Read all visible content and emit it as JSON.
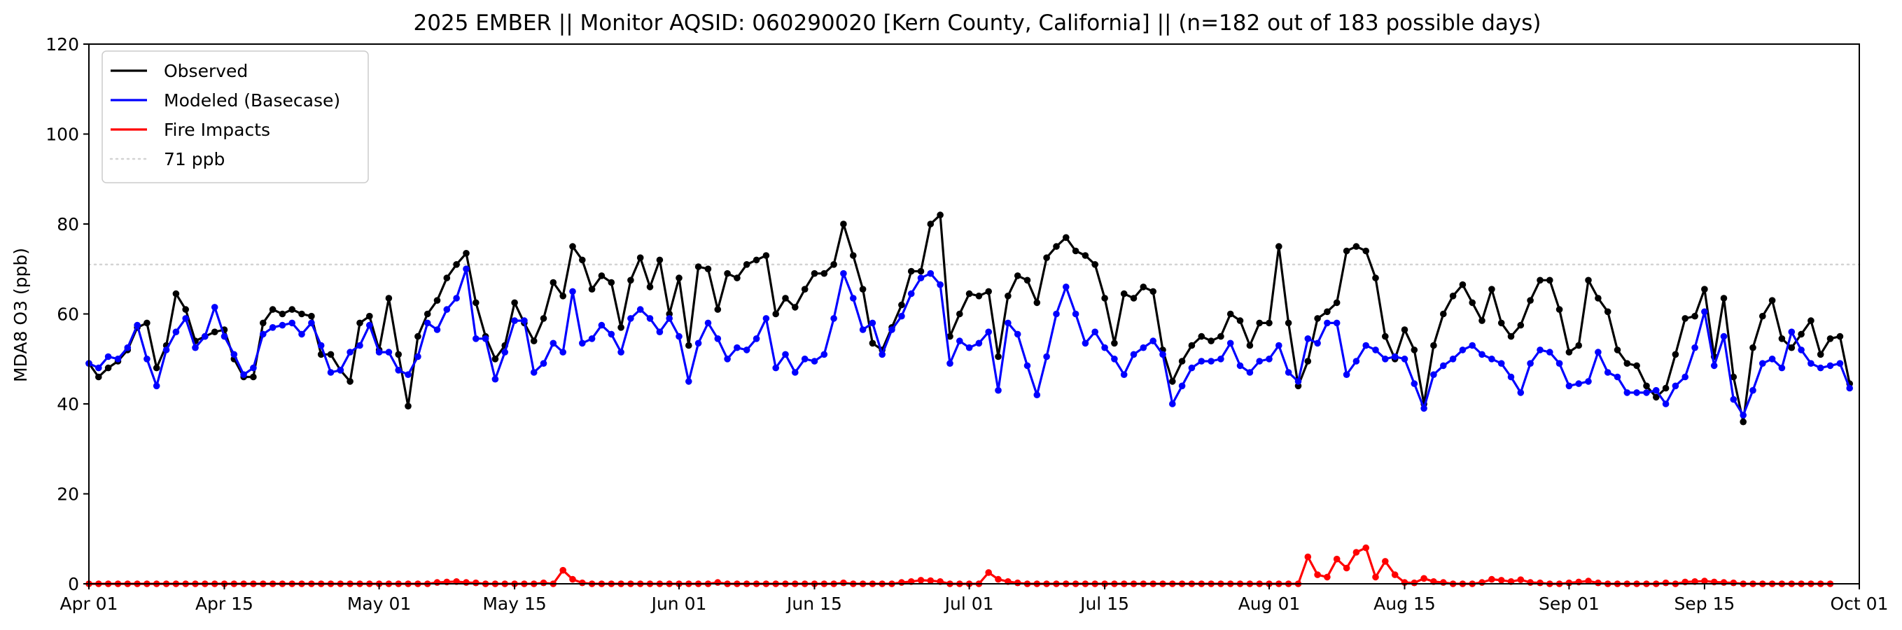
{
  "chart_data": {
    "type": "line",
    "title": "2025 EMBER || Monitor AQSID: 060290020 [Kern County, California] || (n=182 out of 183 possible days)",
    "xlabel": "",
    "ylabel": "MDA8 O3 (ppb)",
    "x_start": "2025-04-01",
    "x_end": "2025-10-01",
    "ylim": [
      0,
      120
    ],
    "yticks": [
      0,
      20,
      40,
      60,
      80,
      100,
      120
    ],
    "xticks": [
      {
        "date": "2025-04-01",
        "label": "Apr 01"
      },
      {
        "date": "2025-04-15",
        "label": "Apr 15"
      },
      {
        "date": "2025-05-01",
        "label": "May 01"
      },
      {
        "date": "2025-05-15",
        "label": "May 15"
      },
      {
        "date": "2025-06-01",
        "label": "Jun 01"
      },
      {
        "date": "2025-06-15",
        "label": "Jun 15"
      },
      {
        "date": "2025-07-01",
        "label": "Jul 01"
      },
      {
        "date": "2025-07-15",
        "label": "Jul 15"
      },
      {
        "date": "2025-08-01",
        "label": "Aug 01"
      },
      {
        "date": "2025-08-15",
        "label": "Aug 15"
      },
      {
        "date": "2025-09-01",
        "label": "Sep 01"
      },
      {
        "date": "2025-09-15",
        "label": "Sep 15"
      },
      {
        "date": "2025-10-01",
        "label": "Oct 01"
      }
    ],
    "legend_position": "top-left",
    "grid": false,
    "reference_line": {
      "name": "71 ppb",
      "y": 71,
      "color": "#d3d3d3",
      "style": "dotted"
    },
    "series": [
      {
        "name": "Observed",
        "color": "#000000",
        "values": [
          49,
          46,
          48,
          49.5,
          52,
          57,
          58,
          48,
          53,
          64.5,
          61,
          54,
          55,
          56,
          56.5,
          50,
          46,
          46,
          58,
          61,
          60,
          61,
          60,
          59.5,
          51,
          51,
          47.5,
          45,
          58,
          59.5,
          52,
          63.5,
          51,
          39.5,
          55,
          60,
          63,
          68,
          71,
          73.5,
          62.5,
          55,
          50,
          53,
          62.5,
          58,
          54,
          59,
          67,
          64,
          75,
          72,
          65.5,
          68.5,
          67,
          57,
          67.5,
          72.5,
          66,
          72,
          60,
          68,
          53,
          70.5,
          70,
          61,
          69,
          68,
          71,
          72,
          73,
          60,
          63.5,
          61.5,
          65.5,
          69,
          69,
          71,
          80,
          73,
          65.5,
          53.5,
          52,
          57,
          62,
          69.5,
          69.5,
          80,
          82,
          55,
          60,
          64.5,
          64,
          65,
          50.5,
          64,
          68.5,
          67.5,
          62.5,
          72.5,
          75,
          77,
          74,
          73,
          71,
          63.5,
          53.5,
          64.5,
          63.5,
          66,
          65,
          52,
          45,
          49.5,
          53,
          55,
          54,
          55,
          60,
          58.5,
          53,
          58,
          58,
          75,
          58,
          44,
          49.5,
          59,
          60.5,
          62.5,
          74,
          75,
          74,
          68,
          55,
          50,
          56.5,
          52,
          40,
          53,
          60,
          64,
          66.5,
          62.5,
          58.5,
          65.5,
          58,
          55,
          57.5,
          63,
          67.5,
          67.5,
          61,
          51.5,
          53,
          67.5,
          63.5,
          60.5,
          52,
          49,
          48.5,
          44,
          41.5,
          43.5,
          51,
          59,
          59.5,
          65.5,
          50.5,
          63.5,
          46,
          36,
          52.5,
          59.5,
          63,
          54.5,
          52.5,
          55.5,
          58.5,
          51,
          54.5,
          55,
          44.5
        ]
      },
      {
        "name": "Modeled (Basecase)",
        "color": "#0000ff",
        "values": [
          49,
          48,
          50.5,
          50,
          52.5,
          57.5,
          50,
          44,
          52,
          56,
          59,
          52.5,
          55,
          61.5,
          55,
          51,
          46.5,
          48,
          55.5,
          57,
          57.5,
          58,
          55.5,
          58,
          53,
          47,
          47.5,
          51.5,
          53,
          57.5,
          51.5,
          51.5,
          47.5,
          46.5,
          50.5,
          58,
          56.5,
          61,
          63.5,
          70,
          54.5,
          54.5,
          45.5,
          51.5,
          58.5,
          58.5,
          47,
          49,
          53.5,
          51.5,
          65,
          53.5,
          54.5,
          57.5,
          55.5,
          51.5,
          59,
          61,
          59,
          56,
          59,
          55,
          45,
          53.5,
          58,
          54.5,
          50,
          52.5,
          52,
          54.5,
          59,
          48,
          51,
          47,
          50,
          49.5,
          51,
          59,
          69,
          63.5,
          56.5,
          58,
          51,
          56.5,
          59.5,
          64.5,
          68,
          69,
          66.5,
          49,
          54,
          52.5,
          53.5,
          56,
          43,
          58,
          55.5,
          48.5,
          42,
          50.5,
          60,
          66,
          60,
          53.5,
          56,
          52.5,
          50,
          46.5,
          51,
          52.5,
          54,
          51,
          40,
          44,
          48,
          49.5,
          49.5,
          50,
          53.5,
          48.5,
          47,
          49.5,
          50,
          53,
          47,
          45,
          54.5,
          53.5,
          58,
          58,
          46.5,
          49.5,
          53,
          52,
          50,
          50.5,
          50,
          44.5,
          39,
          46.5,
          48.5,
          50,
          52,
          53,
          51,
          50,
          49,
          46,
          42.5,
          49,
          52,
          51.5,
          49,
          44,
          44.5,
          45,
          51.5,
          47,
          46,
          42.5,
          42.5,
          42.5,
          43,
          40,
          44,
          46,
          52.5,
          60.5,
          48.5,
          55,
          41,
          37.5,
          43,
          49,
          50,
          48,
          56,
          52,
          49,
          48,
          48.5,
          49,
          43.5
        ]
      },
      {
        "name": "Fire Impacts",
        "color": "#ff0000",
        "values": [
          0,
          0,
          0,
          0,
          0,
          0,
          0,
          0,
          0,
          0,
          0,
          0,
          0,
          0,
          0,
          0,
          0,
          0,
          0,
          0,
          0,
          0,
          0,
          0,
          0,
          0,
          0,
          0,
          0,
          0,
          0,
          0,
          0,
          0,
          0,
          0,
          0.3,
          0.4,
          0.5,
          0.3,
          0.2,
          0,
          0,
          0,
          0,
          0,
          0,
          0.2,
          0,
          3,
          1,
          0.2,
          0,
          0,
          0,
          0,
          0,
          0,
          0,
          0,
          0,
          0,
          0,
          0,
          0,
          0.3,
          0,
          0,
          0,
          0,
          0,
          0,
          0,
          0,
          0,
          0,
          0,
          0,
          0.2,
          0,
          0,
          0,
          0,
          0,
          0.3,
          0.5,
          0.8,
          0.7,
          0.5,
          0,
          0,
          0,
          0,
          2.5,
          1,
          0.5,
          0.2,
          0,
          0,
          0,
          0,
          0,
          0,
          0,
          0,
          0,
          0,
          0,
          0,
          0,
          0,
          0,
          0,
          0,
          0,
          0,
          0,
          0,
          0,
          0,
          0,
          0,
          0,
          0,
          0,
          0,
          6,
          2,
          1.5,
          5.5,
          3.5,
          7,
          8,
          1.5,
          5,
          2,
          0.3,
          0.2,
          1.2,
          0.5,
          0.3,
          0,
          0,
          0,
          0.3,
          1,
          0.8,
          0.5,
          0.9,
          0.3,
          0.2,
          0,
          0,
          0.2,
          0.4,
          0.6,
          0.2,
          0,
          0,
          0,
          0,
          0,
          0,
          0.2,
          0,
          0.4,
          0.5,
          0.6,
          0.4,
          0.3,
          0.2,
          0,
          0,
          0,
          0,
          0,
          0,
          0,
          0,
          0,
          0
        ]
      }
    ]
  }
}
